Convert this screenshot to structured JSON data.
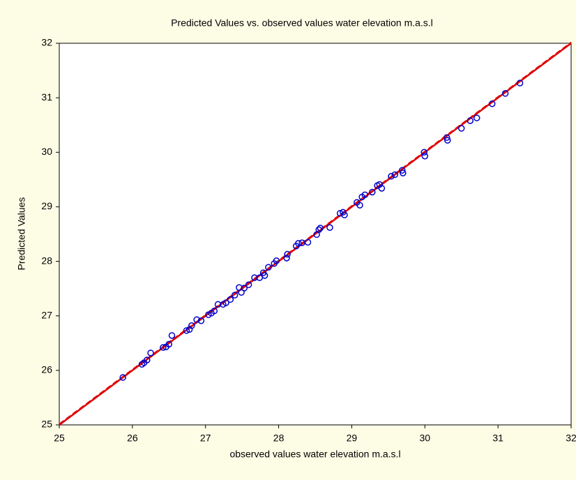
{
  "chart_data": {
    "type": "scatter",
    "title": "Predicted Values  vs. observed values water elevation m.a.s.l",
    "x_label": "observed values water elevation m.a.s.l",
    "y_label": "Predicted Values",
    "x": [
      25.87,
      26.13,
      26.16,
      26.2,
      26.25,
      26.42,
      26.46,
      26.5,
      26.54,
      26.74,
      26.78,
      26.81,
      26.88,
      26.94,
      27.04,
      27.08,
      27.12,
      27.17,
      27.24,
      27.28,
      27.34,
      27.4,
      27.46,
      27.49,
      27.53,
      27.59,
      27.67,
      27.74,
      27.79,
      27.81,
      27.86,
      27.94,
      27.97,
      28.11,
      28.12,
      28.24,
      28.27,
      28.32,
      28.4,
      28.52,
      28.55,
      28.57,
      28.7,
      28.84,
      28.88,
      28.9,
      29.07,
      29.11,
      29.14,
      29.18,
      29.28,
      29.35,
      29.38,
      29.41,
      29.54,
      29.59,
      29.69,
      29.7,
      29.99,
      30.0,
      30.3,
      30.31,
      30.5,
      30.62,
      30.71,
      30.92,
      31.1,
      31.3
    ],
    "values": [
      25.87,
      26.11,
      26.14,
      26.19,
      26.32,
      26.42,
      26.43,
      26.48,
      26.64,
      26.73,
      26.75,
      26.82,
      26.93,
      26.91,
      27.02,
      27.05,
      27.09,
      27.21,
      27.21,
      27.24,
      27.3,
      27.38,
      27.52,
      27.43,
      27.51,
      27.57,
      27.7,
      27.7,
      27.79,
      27.74,
      27.89,
      27.96,
      28.01,
      28.06,
      28.13,
      28.28,
      28.33,
      28.34,
      28.35,
      28.49,
      28.58,
      28.61,
      28.62,
      28.88,
      28.9,
      28.85,
      29.08,
      29.03,
      29.18,
      29.22,
      29.27,
      29.39,
      29.41,
      29.34,
      29.56,
      29.59,
      29.67,
      29.62,
      30.0,
      29.93,
      30.27,
      30.22,
      30.44,
      30.58,
      30.63,
      30.89,
      31.08,
      31.27
    ],
    "color": "#0000cc",
    "fit_line": {
      "x": [
        25,
        32
      ],
      "y": [
        25,
        32
      ],
      "color": "#e00000"
    },
    "xlim": [
      25,
      32
    ],
    "ylim": [
      25,
      32
    ],
    "xticks": [
      25,
      26,
      27,
      28,
      29,
      30,
      31,
      32
    ],
    "yticks": [
      25,
      26,
      27,
      28,
      29,
      30,
      31,
      32
    ],
    "grid": false
  }
}
